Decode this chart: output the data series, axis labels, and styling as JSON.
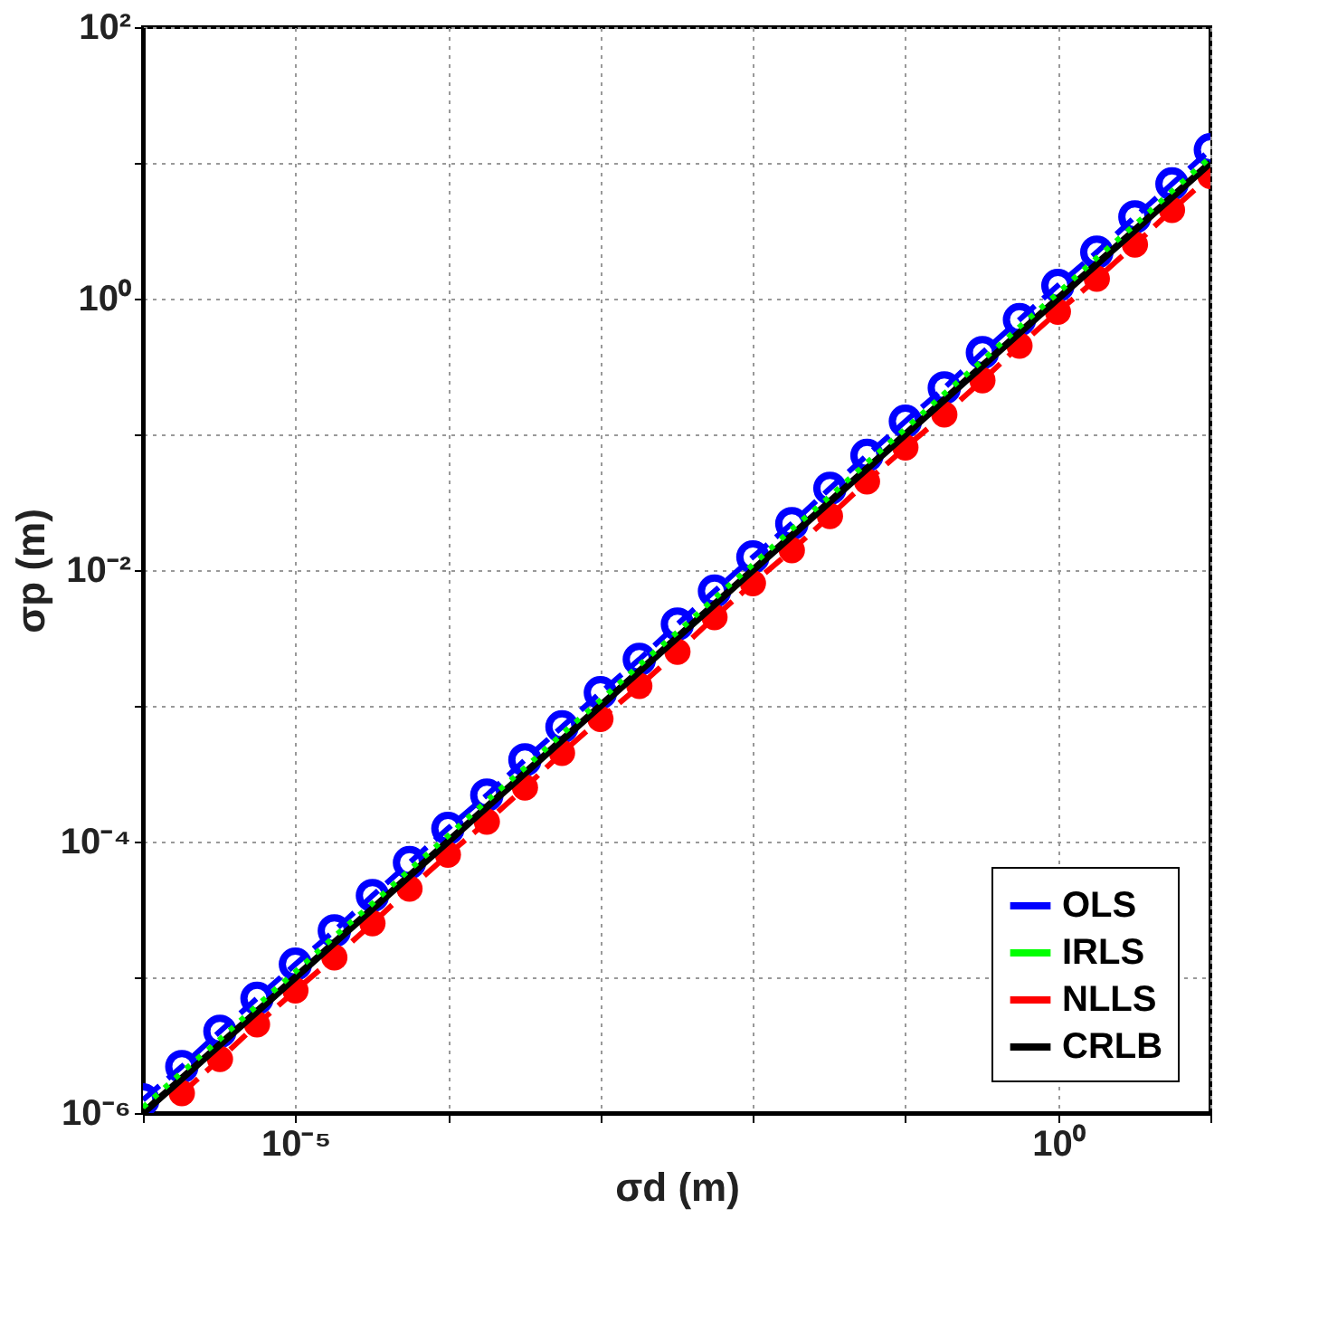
{
  "chart_data": {
    "type": "line",
    "xlabel": "σd (m)",
    "ylabel": "σp (m)",
    "log": "xy",
    "grid": true,
    "legend": "bottom right",
    "x": [
      1e-06,
      1.8e-06,
      3.2e-06,
      5.6e-06,
      1e-05,
      1.8e-05,
      3.2e-05,
      5.6e-05,
      0.0001,
      0.00018,
      0.00032,
      0.00056,
      0.001,
      0.0018,
      0.0032,
      0.0056,
      0.01,
      0.018,
      0.032,
      0.056,
      0.1,
      0.18,
      0.32,
      0.56,
      1,
      1.8,
      3.2,
      5.6,
      10
    ],
    "xlim": [
      1e-06,
      10
    ],
    "xticks": [
      {
        "value": 1e-06,
        "label": null
      },
      {
        "value": 1e-05,
        "label": "10⁻⁵"
      },
      {
        "value": 0.0001,
        "label": null
      },
      {
        "value": 0.001,
        "label": null
      },
      {
        "value": 0.01,
        "label": null
      },
      {
        "value": 0.1,
        "label": null
      },
      {
        "value": 1,
        "label": "10⁰"
      },
      {
        "value": 10,
        "label": null
      }
    ],
    "ylim": [
      1e-06,
      100
    ],
    "yticks": [
      {
        "value": 1e-06,
        "label": "10⁻⁶"
      },
      {
        "value": 1e-05,
        "label": null
      },
      {
        "value": 0.0001,
        "label": "10⁻⁴"
      },
      {
        "value": 0.001,
        "label": null
      },
      {
        "value": 0.01,
        "label": "10⁻²"
      },
      {
        "value": 0.1,
        "label": null
      },
      {
        "value": 1,
        "label": "10⁰"
      },
      {
        "value": 10,
        "label": null
      },
      {
        "value": 100,
        "label": "10²"
      }
    ],
    "series": [
      {
        "name": "OLS",
        "color": "#0000ff",
        "marker": "circle",
        "line_style": "dashed",
        "values": [
          1.25e-06,
          2.2e-06,
          4e-06,
          7e-06,
          1.25e-05,
          2.2e-05,
          4e-05,
          7e-05,
          0.000125,
          0.00022,
          0.0004,
          0.0007,
          0.00125,
          0.0022,
          0.004,
          0.007,
          0.0125,
          0.022,
          0.04,
          0.07,
          0.125,
          0.22,
          0.4,
          0.7,
          1.25,
          2.2,
          4,
          7,
          12.5
        ]
      },
      {
        "name": "IRLS",
        "color": "#00ff00",
        "marker": "none",
        "line_style": "dotted",
        "values": [
          1.1e-06,
          2e-06,
          3.5e-06,
          6.2e-06,
          1.1e-05,
          2e-05,
          3.5e-05,
          6.2e-05,
          0.00011,
          0.0002,
          0.00035,
          0.00062,
          0.0011,
          0.002,
          0.0035,
          0.0062,
          0.011,
          0.02,
          0.035,
          0.062,
          0.11,
          0.2,
          0.35,
          0.62,
          1.1,
          2,
          3.5,
          6.2,
          11
        ]
      },
      {
        "name": "NLLS",
        "color": "#ff0000",
        "marker": "circle",
        "line_style": "dashed",
        "values": [
          null,
          1.4e-06,
          2.5e-06,
          4.5e-06,
          8e-06,
          1.4e-05,
          2.5e-05,
          4.5e-05,
          8e-05,
          0.00014,
          0.00025,
          0.00045,
          0.0008,
          0.0014,
          0.0025,
          0.0045,
          0.008,
          0.014,
          0.025,
          0.045,
          0.08,
          0.14,
          0.25,
          0.45,
          0.8,
          1.4,
          2.5,
          4.5,
          8
        ]
      },
      {
        "name": "CRLB",
        "color": "#000000",
        "marker": "none",
        "line_style": "solid",
        "values": [
          1e-06,
          1.8e-06,
          3.2e-06,
          5.6e-06,
          1e-05,
          1.8e-05,
          3.2e-05,
          5.6e-05,
          0.0001,
          0.00018,
          0.00032,
          0.00056,
          0.001,
          0.0018,
          0.0032,
          0.0056,
          0.01,
          0.018,
          0.032,
          0.056,
          0.1,
          0.18,
          0.32,
          0.56,
          1,
          1.8,
          3.2,
          5.6,
          10
        ]
      }
    ]
  }
}
